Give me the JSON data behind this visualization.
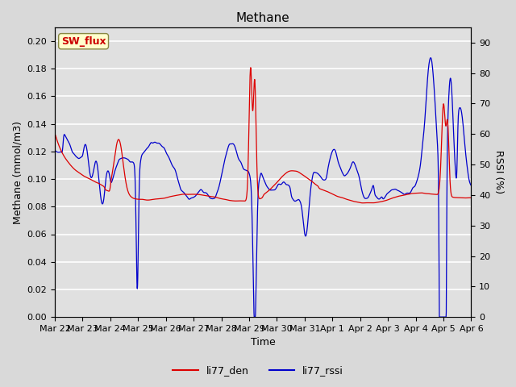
{
  "title": "Methane",
  "xlabel": "Time",
  "ylabel_left": "Methane (mmol/m3)",
  "ylabel_right": "RSSI (%)",
  "annotation_text": "SW_flux",
  "annotation_color": "#cc0000",
  "annotation_bg": "#ffffcc",
  "annotation_border": "#888844",
  "legend_entries": [
    "li77_den",
    "li77_rssi"
  ],
  "line_color_den": "#dd0000",
  "line_color_rssi": "#0000cc",
  "ylim_left": [
    0.0,
    0.21
  ],
  "ylim_right": [
    0,
    95
  ],
  "fig_bg": "#d9d9d9",
  "plot_bg": "#e0e0e0",
  "grid_color": "#ffffff",
  "title_fontsize": 11,
  "axis_fontsize": 9,
  "tick_fontsize": 8,
  "legend_fontsize": 9,
  "xtick_labels": [
    "Mar 22",
    "Mar 23",
    "Mar 24",
    "Mar 25",
    "Mar 26",
    "Mar 27",
    "Mar 28",
    "Mar 29",
    "Mar 30",
    "Mar 31",
    "Apr 1",
    "Apr 2",
    "Apr 3",
    "Apr 4",
    "Apr 5",
    "Apr 6"
  ],
  "xtick_positions": [
    0,
    1,
    2,
    3,
    4,
    5,
    6,
    7,
    8,
    9,
    10,
    11,
    12,
    13,
    14,
    15
  ]
}
